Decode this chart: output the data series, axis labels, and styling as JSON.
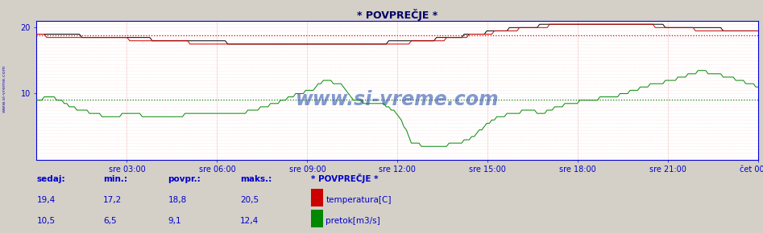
{
  "title": "* POVPREČJE *",
  "bg_color": "#d4d0c8",
  "plot_bg_color": "#ffffff",
  "axis_color": "#0000dd",
  "tick_label_color": "#0000cc",
  "title_color": "#000066",
  "temp_color": "#cc0000",
  "flow_color": "#008800",
  "black_line_color": "#000000",
  "grid_v_color": "#dd8888",
  "grid_h_color": "#ffcccc",
  "watermark": "www.si-vreme.com",
  "watermark_color": "#2244aa",
  "sidebar_text": "www.si-vreme.com",
  "sidebar_color": "#0000aa",
  "legend_title": "* POVPREČJE *",
  "footer_color": "#0000cc",
  "ylim": [
    0,
    21
  ],
  "yticks": [
    10,
    20
  ],
  "x_labels": [
    "sre 03:00",
    "sre 06:00",
    "sre 09:00",
    "sre 12:00",
    "sre 15:00",
    "sre 18:00",
    "sre 21:00",
    "čet 00:00"
  ],
  "temp_avg": 18.8,
  "temp_min": 17.2,
  "temp_max": 20.5,
  "temp_current": 19.4,
  "flow_avg": 9.1,
  "flow_min": 6.5,
  "flow_max": 12.4,
  "flow_current": 10.5,
  "footer_temp_sedaj": "19,4",
  "footer_temp_min": "17,2",
  "footer_temp_povpr": "18,8",
  "footer_temp_maks": "20,5",
  "footer_flow_sedaj": "10,5",
  "footer_flow_min": "6,5",
  "footer_flow_povpr": "9,1",
  "footer_flow_maks": "12,4",
  "n_points": 288
}
